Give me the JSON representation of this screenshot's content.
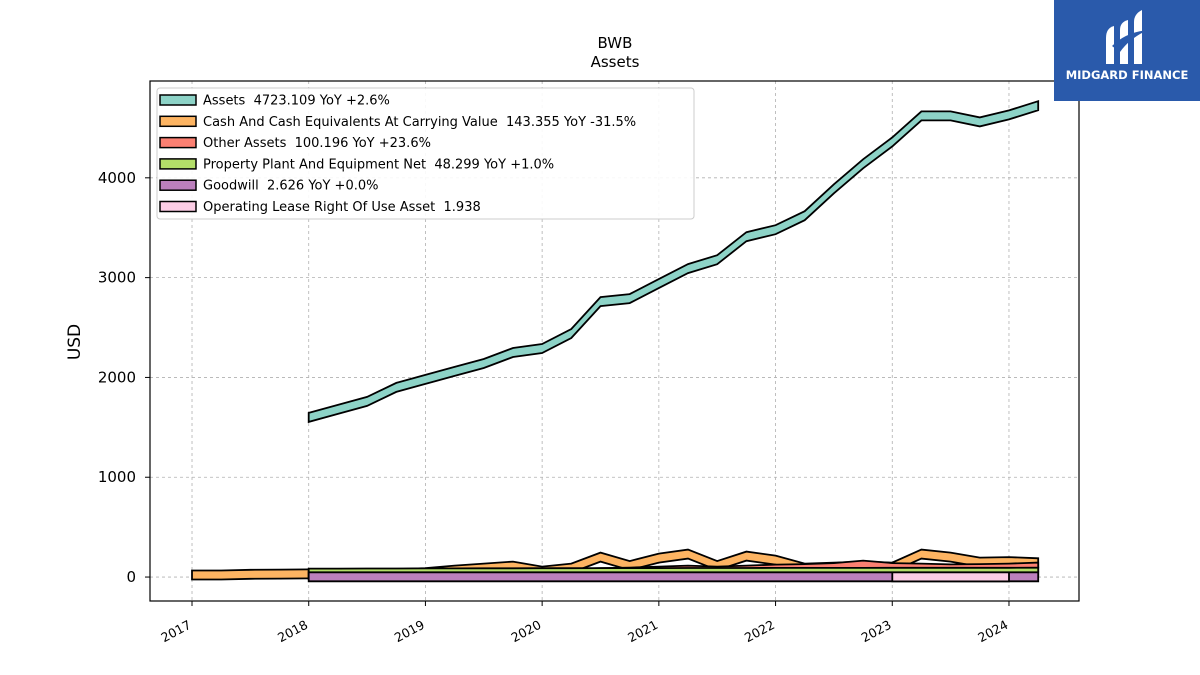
{
  "chart_data": {
    "type": "area",
    "title": "BWB",
    "subtitle": "Assets",
    "ylabel": "USD",
    "xlabel": "",
    "x_ticks": [
      "2017",
      "2018",
      "2019",
      "2020",
      "2021",
      "2022",
      "2023",
      "2024"
    ],
    "y_ticks": [
      "0",
      "1000",
      "2000",
      "3000",
      "4000"
    ],
    "xlim": [
      2016.64,
      2024.6
    ],
    "ylim": [
      -240,
      4970
    ],
    "grid": true,
    "legend_position": "top-left",
    "series": [
      {
        "name": "Assets",
        "legend": "Assets  4723.109 YoY +2.6%",
        "color": "#8dd3c7",
        "x": [
          2018.0,
          2018.25,
          2018.5,
          2018.75,
          2019.0,
          2019.25,
          2019.5,
          2019.75,
          2020.0,
          2020.25,
          2020.5,
          2020.75,
          2021.0,
          2021.25,
          2021.5,
          2021.75,
          2022.0,
          2022.25,
          2022.5,
          2022.75,
          2023.0,
          2023.25,
          2023.5,
          2023.75,
          2024.0,
          2024.25
        ],
        "y": [
          1600,
          1680,
          1760,
          1900,
          1980,
          2060,
          2140,
          2250,
          2290,
          2440,
          2760,
          2790,
          2940,
          3090,
          3180,
          3410,
          3480,
          3620,
          3890,
          4140,
          4360,
          4620,
          4620,
          4560,
          4630,
          4723
        ]
      },
      {
        "name": "Cash And Cash Equivalents At Carrying Value",
        "legend": "Cash And Cash Equivalents At Carrying Value  143.355 YoY -31.5%",
        "color": "#fdb462",
        "x": [
          2017.0,
          2017.25,
          2017.5,
          2017.75,
          2018.0,
          2018.25,
          2018.5,
          2018.75,
          2019.0,
          2019.25,
          2019.5,
          2019.75,
          2020.0,
          2020.25,
          2020.5,
          2020.75,
          2021.0,
          2021.25,
          2021.5,
          2021.75,
          2022.0,
          2022.25,
          2022.5,
          2022.75,
          2023.0,
          2023.25,
          2023.5,
          2023.75,
          2024.0,
          2024.25
        ],
        "y": [
          20,
          20,
          28,
          30,
          32,
          30,
          30,
          35,
          45,
          70,
          90,
          110,
          60,
          90,
          200,
          115,
          190,
          230,
          115,
          210,
          170,
          90,
          100,
          110,
          100,
          230,
          200,
          150,
          155,
          143
        ]
      },
      {
        "name": "Other Assets",
        "legend": "Other Assets  100.196 YoY +23.6%",
        "color": "#fb8072",
        "x": [
          2018.0,
          2018.25,
          2018.5,
          2018.75,
          2019.0,
          2019.25,
          2019.5,
          2019.75,
          2020.0,
          2020.25,
          2020.5,
          2020.75,
          2021.0,
          2021.25,
          2021.5,
          2021.75,
          2022.0,
          2022.25,
          2022.5,
          2022.75,
          2023.0,
          2023.25,
          2023.5,
          2023.75,
          2024.0,
          2024.25
        ],
        "y": [
          25,
          25,
          25,
          25,
          25,
          28,
          28,
          30,
          30,
          35,
          45,
          50,
          60,
          70,
          60,
          70,
          80,
          85,
          95,
          120,
          95,
          90,
          82,
          85,
          90,
          100
        ]
      },
      {
        "name": "Property Plant And Equipment Net",
        "legend": "Property Plant And Equipment Net  48.299 YoY +1.0%",
        "color": "#b3de69",
        "x": [
          2018.0,
          2018.25,
          2018.5,
          2018.75,
          2019.0,
          2019.25,
          2019.5,
          2019.75,
          2020.0,
          2020.25,
          2020.5,
          2020.75,
          2021.0,
          2021.25,
          2021.5,
          2021.75,
          2022.0,
          2022.25,
          2022.5,
          2022.75,
          2023.0,
          2023.25,
          2023.5,
          2023.75,
          2024.0,
          2024.25
        ],
        "y": [
          40,
          40,
          41,
          41,
          42,
          42,
          43,
          43,
          44,
          44,
          45,
          45,
          45,
          46,
          46,
          46,
          47,
          47,
          47,
          47,
          48,
          48,
          48,
          48,
          48,
          48.299
        ]
      },
      {
        "name": "Goodwill",
        "legend": "Goodwill  2.626 YoY +0.0%",
        "color": "#bc80bd",
        "x": [
          2018.0,
          2024.25
        ],
        "y": [
          2.626,
          2.626
        ]
      },
      {
        "name": "Operating Lease Right Of Use Asset",
        "legend": "Operating Lease Right Of Use Asset  1.938",
        "color": "#fccde5",
        "x": [
          2023.0,
          2024.0
        ],
        "y": [
          1.938,
          1.938
        ]
      }
    ]
  },
  "watermark": {
    "text": "MIDGARD FINANCE",
    "background": "#2a5aab"
  }
}
